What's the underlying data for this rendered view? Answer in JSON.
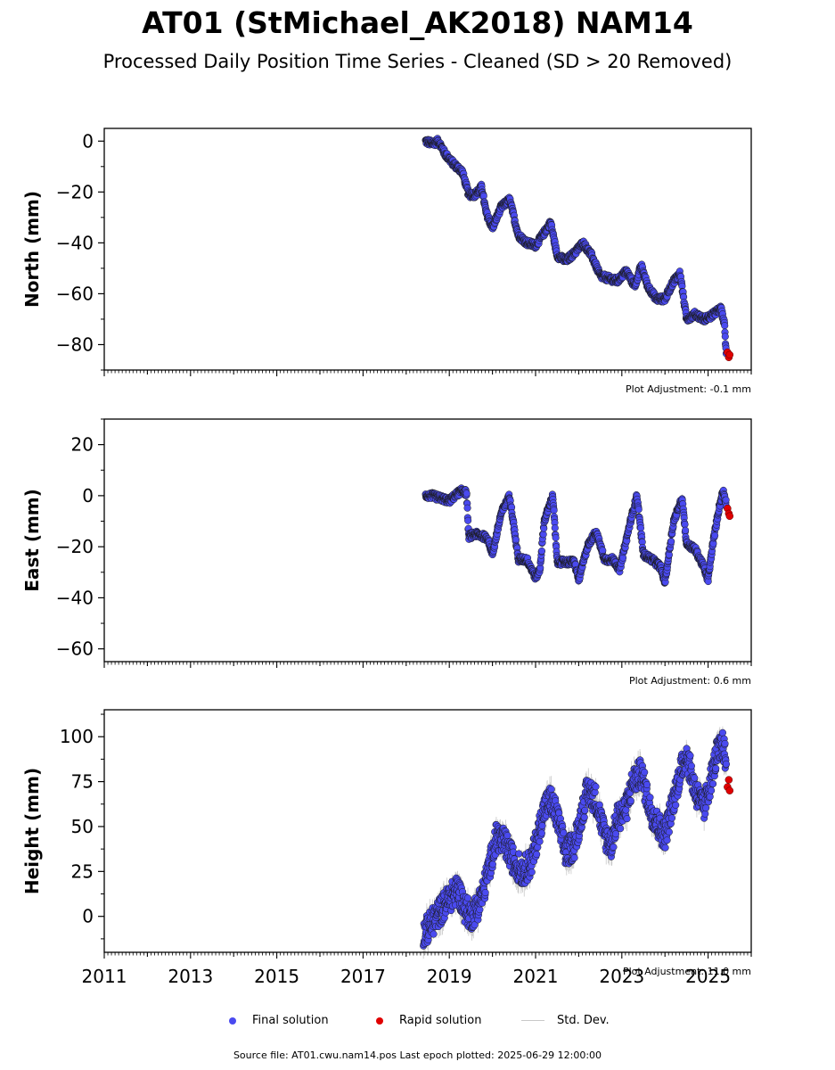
{
  "title": "AT01 (StMichael_AK2018) NAM14",
  "subtitle": "Processed Daily Position Time Series - Cleaned (SD > 20 Removed)",
  "source_note": "Source file: AT01.cwu.nam14.pos  Last epoch plotted: 2025-06-29 12:00:00",
  "legend": {
    "final": "Final solution",
    "rapid": "Rapid solution",
    "std": "Std. Dev."
  },
  "colors": {
    "final": "#4a4af0",
    "rapid": "#e00000",
    "std": "#c8c8c8",
    "marker_edge": "#1a1a1a"
  },
  "chart_data": [
    {
      "type": "scatter",
      "ylabel": "North (mm)",
      "ylim": [
        -90,
        5
      ],
      "yticks": [
        0,
        -20,
        -40,
        -60,
        -80
      ],
      "adjustment": "Plot Adjustment: -0.1 mm",
      "series": [
        {
          "name": "Final solution",
          "x": [
            2018.45,
            2018.6,
            2018.75,
            2018.9,
            2019.1,
            2019.3,
            2019.45,
            2019.6,
            2019.75,
            2019.85,
            2020.0,
            2020.2,
            2020.4,
            2020.6,
            2020.8,
            2021.0,
            2021.2,
            2021.35,
            2021.5,
            2021.7,
            2021.9,
            2022.1,
            2022.3,
            2022.5,
            2022.7,
            2022.9,
            2023.1,
            2023.3,
            2023.45,
            2023.6,
            2023.8,
            2024.0,
            2024.2,
            2024.35,
            2024.5,
            2024.7,
            2024.9,
            2025.05,
            2025.2,
            2025.3,
            2025.38,
            2025.42
          ],
          "y": [
            0,
            -1,
            0,
            -5,
            -9,
            -12,
            -21,
            -21,
            -18,
            -28,
            -34,
            -26,
            -23,
            -37,
            -40,
            -41,
            -36,
            -32,
            -45,
            -47,
            -44,
            -40,
            -45,
            -53,
            -54,
            -55,
            -51,
            -57,
            -49,
            -57,
            -62,
            -62,
            -55,
            -52,
            -70,
            -68,
            -70,
            -69,
            -67,
            -66,
            -72,
            -84
          ]
        }
      ],
      "rapid": {
        "x": [
          2025.45,
          2025.48,
          2025.5
        ],
        "y": [
          -83,
          -85,
          -84
        ]
      }
    },
    {
      "type": "scatter",
      "ylabel": "East (mm)",
      "ylim": [
        -65,
        30
      ],
      "yticks": [
        20,
        0,
        -20,
        -40,
        -60
      ],
      "adjustment": "Plot Adjustment: 0.6 mm",
      "series": [
        {
          "name": "Final solution",
          "x": [
            2018.45,
            2018.6,
            2018.8,
            2019.0,
            2019.2,
            2019.3,
            2019.4,
            2019.45,
            2019.6,
            2019.8,
            2019.9,
            2020.0,
            2020.2,
            2020.4,
            2020.6,
            2020.8,
            2021.0,
            2021.1,
            2021.2,
            2021.4,
            2021.5,
            2021.7,
            2021.9,
            2022.0,
            2022.2,
            2022.4,
            2022.6,
            2022.8,
            2022.95,
            2023.2,
            2023.35,
            2023.5,
            2023.7,
            2023.9,
            2024.0,
            2024.2,
            2024.4,
            2024.5,
            2024.7,
            2024.9,
            2025.0,
            2025.1,
            2025.25,
            2025.35,
            2025.42
          ],
          "y": [
            0,
            0,
            -1,
            -2,
            1,
            2,
            1,
            -16,
            -15,
            -16,
            -17,
            -23,
            -7,
            0,
            -25,
            -25,
            -32,
            -29,
            -10,
            0,
            -26,
            -26,
            -26,
            -33,
            -20,
            -14,
            -25,
            -25,
            -29,
            -10,
            0,
            -23,
            -25,
            -28,
            -34,
            -10,
            -1,
            -19,
            -21,
            -28,
            -33,
            -20,
            -5,
            2,
            -3
          ]
        }
      ],
      "rapid": {
        "x": [
          2025.45,
          2025.48,
          2025.5
        ],
        "y": [
          -5,
          -7,
          -8
        ]
      }
    },
    {
      "type": "scatter",
      "ylabel": "Height (mm)",
      "ylim": [
        -20,
        115
      ],
      "yticks": [
        100,
        75,
        50,
        25,
        0
      ],
      "adjustment": "Plot Adjustment: 11.0 mm",
      "xlim": [
        2011,
        2026
      ],
      "xticks": [
        "2011",
        "2013",
        "2015",
        "2017",
        "2019",
        "2021",
        "2023",
        "2025"
      ],
      "series": [
        {
          "name": "Final solution",
          "x": [
            2018.4,
            2018.55,
            2018.7,
            2018.85,
            2019.0,
            2019.2,
            2019.35,
            2019.5,
            2019.65,
            2019.8,
            2019.95,
            2020.1,
            2020.3,
            2020.5,
            2020.7,
            2020.9,
            2021.05,
            2021.2,
            2021.35,
            2021.5,
            2021.7,
            2021.9,
            2022.05,
            2022.2,
            2022.4,
            2022.6,
            2022.75,
            2022.9,
            2023.1,
            2023.25,
            2023.45,
            2023.65,
            2023.85,
            2024.0,
            2024.2,
            2024.35,
            2024.5,
            2024.7,
            2024.9,
            2025.05,
            2025.2,
            2025.35,
            2025.42
          ],
          "y": [
            -10,
            -5,
            0,
            5,
            10,
            15,
            5,
            0,
            5,
            15,
            30,
            45,
            40,
            30,
            25,
            30,
            45,
            60,
            65,
            55,
            35,
            40,
            55,
            70,
            65,
            45,
            40,
            55,
            60,
            75,
            80,
            60,
            50,
            45,
            65,
            80,
            90,
            70,
            60,
            75,
            90,
            95,
            85
          ]
        }
      ],
      "rapid": {
        "x": [
          2025.45,
          2025.48,
          2025.5
        ],
        "y": [
          72,
          76,
          70
        ]
      }
    }
  ]
}
